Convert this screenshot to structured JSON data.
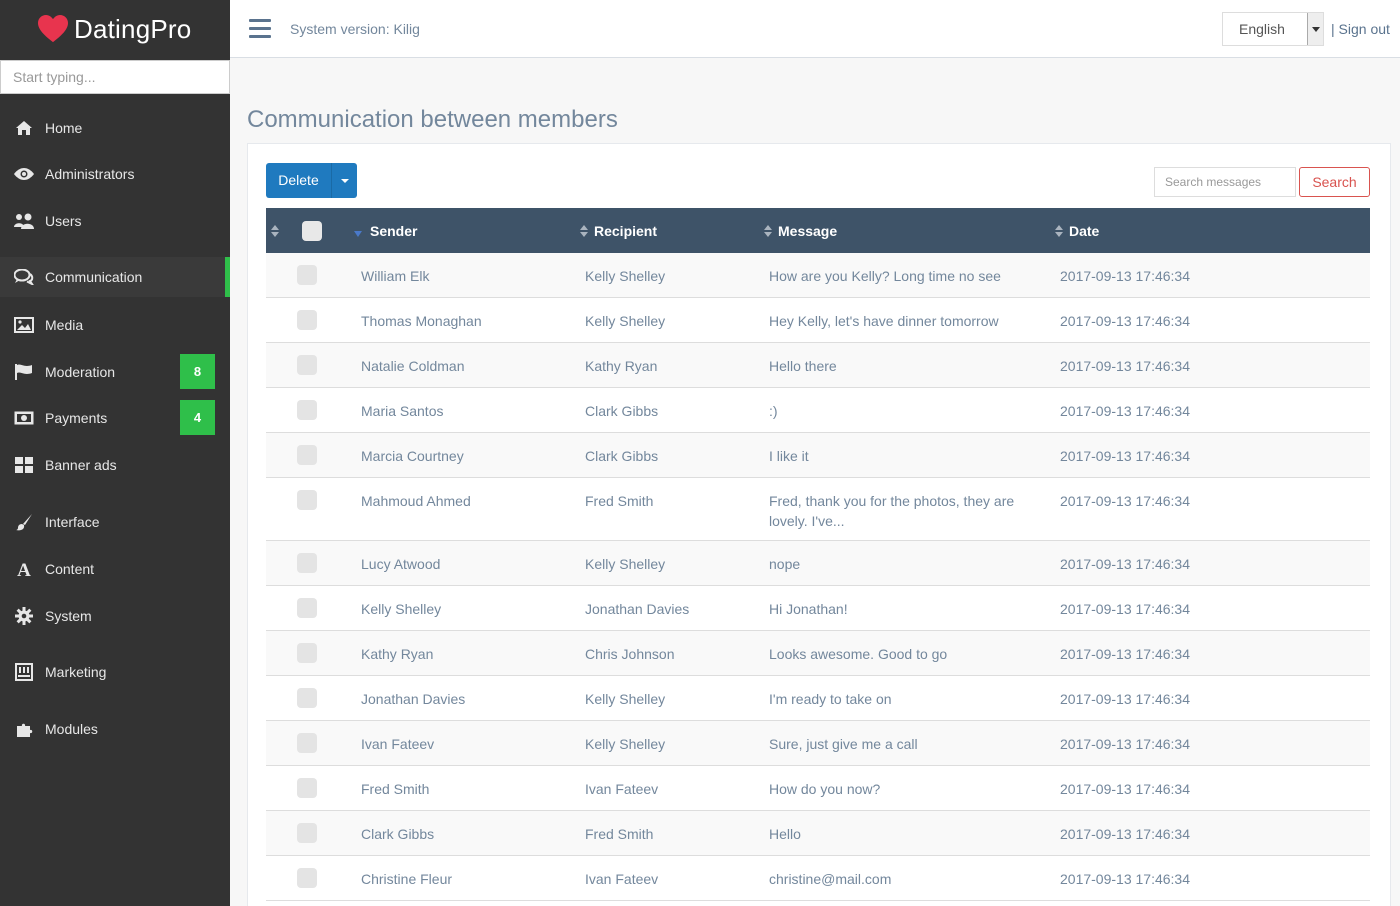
{
  "brand": {
    "name": "DatingPro"
  },
  "sidebar": {
    "search_placeholder": "Start typing...",
    "items": [
      {
        "label": "Home",
        "icon": "home-icon"
      },
      {
        "label": "Administrators",
        "icon": "eye-icon"
      },
      {
        "label": "Users",
        "icon": "users-icon"
      },
      {
        "label": "Communication",
        "icon": "comments-icon",
        "active": true
      },
      {
        "label": "Media",
        "icon": "image-icon"
      },
      {
        "label": "Moderation",
        "icon": "flag-icon",
        "badge": "8"
      },
      {
        "label": "Payments",
        "icon": "money-icon",
        "badge": "4"
      },
      {
        "label": "Banner ads",
        "icon": "grid-icon"
      },
      {
        "label": "Interface",
        "icon": "brush-icon"
      },
      {
        "label": "Content",
        "icon": "font-icon"
      },
      {
        "label": "System",
        "icon": "gear-icon"
      },
      {
        "label": "Marketing",
        "icon": "inbox-icon"
      },
      {
        "label": "Modules",
        "icon": "puzzle-icon"
      }
    ]
  },
  "topbar": {
    "system_version": "System version: Kilig",
    "language": "English",
    "sign_out": "Sign out",
    "separator": "|"
  },
  "main": {
    "title": "Communication between members",
    "delete_label": "Delete",
    "search_placeholder": "Search messages",
    "search_label": "Search",
    "columns": [
      "Sender",
      "Recipient",
      "Message",
      "Date"
    ],
    "rows": [
      {
        "sender": "William Elk",
        "recipient": "Kelly Shelley",
        "message": "How are you Kelly? Long time no see",
        "date": "2017-09-13 17:46:34"
      },
      {
        "sender": "Thomas Monaghan",
        "recipient": "Kelly Shelley",
        "message": "Hey Kelly, let's have dinner tomorrow",
        "date": "2017-09-13 17:46:34"
      },
      {
        "sender": "Natalie Coldman",
        "recipient": "Kathy Ryan",
        "message": "Hello there",
        "date": "2017-09-13 17:46:34"
      },
      {
        "sender": "Maria Santos",
        "recipient": "Clark Gibbs",
        "message": ":)",
        "date": "2017-09-13 17:46:34"
      },
      {
        "sender": "Marcia Courtney",
        "recipient": "Clark Gibbs",
        "message": "I like it",
        "date": "2017-09-13 17:46:34"
      },
      {
        "sender": "Mahmoud Ahmed",
        "recipient": "Fred Smith",
        "message": "Fred, thank you for the photos, they are lovely. I've...",
        "date": "2017-09-13 17:46:34"
      },
      {
        "sender": "Lucy Atwood",
        "recipient": "Kelly Shelley",
        "message": "nope",
        "date": "2017-09-13 17:46:34"
      },
      {
        "sender": "Kelly Shelley",
        "recipient": "Jonathan Davies",
        "message": "Hi Jonathan!",
        "date": "2017-09-13 17:46:34"
      },
      {
        "sender": "Kathy Ryan",
        "recipient": "Chris Johnson",
        "message": "Looks awesome. Good to go",
        "date": "2017-09-13 17:46:34"
      },
      {
        "sender": "Jonathan Davies",
        "recipient": "Kelly Shelley",
        "message": "I'm ready to take on",
        "date": "2017-09-13 17:46:34"
      },
      {
        "sender": "Ivan Fateev",
        "recipient": "Kelly Shelley",
        "message": "Sure, just give me a call",
        "date": "2017-09-13 17:46:34"
      },
      {
        "sender": "Fred Smith",
        "recipient": "Ivan Fateev",
        "message": "How do you now?",
        "date": "2017-09-13 17:46:34"
      },
      {
        "sender": "Clark Gibbs",
        "recipient": "Fred Smith",
        "message": "Hello",
        "date": "2017-09-13 17:46:34"
      },
      {
        "sender": "Christine Fleur",
        "recipient": "Ivan Fateev",
        "message": "christine@mail.com",
        "date": "2017-09-13 17:46:34"
      }
    ]
  },
  "colors": {
    "sidebar_bg": "#333333",
    "accent_green": "#2fbf4a",
    "header_bg": "#3e5368",
    "primary_blue": "#1f7abf",
    "danger": "#d9534f"
  }
}
